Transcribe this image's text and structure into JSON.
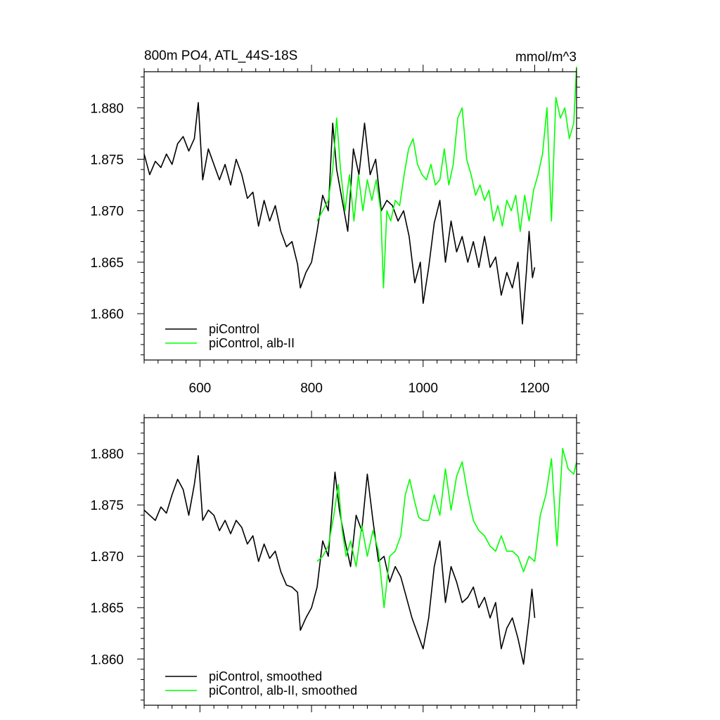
{
  "chart_data": [
    {
      "type": "line",
      "title": "800m PO4, ATL_44S-18S",
      "title_right": "mmol/m^3",
      "xlabel": "",
      "ylabel": "",
      "xlim": [
        500,
        1275
      ],
      "ylim": [
        1.8555,
        1.8835
      ],
      "xticks": [
        600,
        800,
        1000,
        1200
      ],
      "xtick_labels": [
        "600",
        "800",
        "1000",
        "1200"
      ],
      "yticks": [
        1.86,
        1.865,
        1.87,
        1.875,
        1.88
      ],
      "ytick_labels": [
        "1.860",
        "1.865",
        "1.870",
        "1.875",
        "1.880"
      ],
      "legend_position": "bottom-left",
      "grid": false,
      "series": [
        {
          "name": "piControl",
          "color": "#000000",
          "x": [
            500,
            510,
            520,
            530,
            540,
            550,
            560,
            570,
            580,
            590,
            597,
            605,
            615,
            625,
            635,
            645,
            655,
            665,
            675,
            685,
            695,
            705,
            715,
            725,
            735,
            745,
            755,
            765,
            775,
            780,
            790,
            800,
            810,
            820,
            830,
            838,
            845,
            855,
            865,
            875,
            885,
            895,
            905,
            915,
            925,
            935,
            945,
            955,
            965,
            975,
            985,
            995,
            1000,
            1010,
            1020,
            1030,
            1040,
            1050,
            1060,
            1070,
            1080,
            1090,
            1100,
            1110,
            1120,
            1130,
            1140,
            1150,
            1160,
            1170,
            1178,
            1185,
            1190,
            1196,
            1200
          ],
          "values": [
            1.8755,
            1.8735,
            1.8748,
            1.8742,
            1.8755,
            1.8745,
            1.8765,
            1.8772,
            1.8758,
            1.877,
            1.8805,
            1.873,
            1.876,
            1.8745,
            1.873,
            1.8745,
            1.8725,
            1.875,
            1.8735,
            1.8712,
            1.8718,
            1.8685,
            1.871,
            1.869,
            1.8705,
            1.868,
            1.8665,
            1.867,
            1.8648,
            1.8625,
            1.864,
            1.865,
            1.868,
            1.8715,
            1.87,
            1.8785,
            1.874,
            1.871,
            1.868,
            1.876,
            1.8735,
            1.8785,
            1.8735,
            1.875,
            1.87,
            1.871,
            1.8705,
            1.869,
            1.87,
            1.8675,
            1.863,
            1.865,
            1.861,
            1.8645,
            1.8688,
            1.871,
            1.865,
            1.869,
            1.866,
            1.8675,
            1.865,
            1.867,
            1.8645,
            1.8675,
            1.8645,
            1.8655,
            1.8618,
            1.864,
            1.8625,
            1.865,
            1.859,
            1.864,
            1.868,
            1.8635,
            1.8645
          ]
        },
        {
          "name": "piControl, alb-II",
          "color": "#00ff00",
          "x": [
            810,
            820,
            830,
            838,
            845,
            852,
            860,
            868,
            876,
            884,
            892,
            900,
            908,
            916,
            924,
            929,
            935,
            942,
            950,
            958,
            966,
            974,
            982,
            990,
            998,
            1006,
            1014,
            1022,
            1030,
            1038,
            1046,
            1054,
            1062,
            1070,
            1078,
            1086,
            1094,
            1102,
            1110,
            1118,
            1126,
            1134,
            1142,
            1150,
            1158,
            1166,
            1174,
            1182,
            1190,
            1198,
            1206,
            1214,
            1222,
            1230,
            1238,
            1246,
            1254,
            1262,
            1270,
            1275
          ],
          "values": [
            1.869,
            1.87,
            1.871,
            1.874,
            1.879,
            1.874,
            1.87,
            1.8735,
            1.869,
            1.8735,
            1.87,
            1.873,
            1.871,
            1.873,
            1.87,
            1.8625,
            1.87,
            1.869,
            1.871,
            1.8705,
            1.8735,
            1.876,
            1.877,
            1.8745,
            1.8735,
            1.873,
            1.8745,
            1.8725,
            1.873,
            1.876,
            1.8725,
            1.8745,
            1.879,
            1.88,
            1.875,
            1.8735,
            1.8715,
            1.8725,
            1.871,
            1.872,
            1.869,
            1.8705,
            1.8685,
            1.871,
            1.87,
            1.8715,
            1.868,
            1.8715,
            1.869,
            1.872,
            1.8735,
            1.8755,
            1.88,
            1.869,
            1.881,
            1.879,
            1.88,
            1.877,
            1.8785,
            1.884
          ]
        }
      ]
    },
    {
      "type": "line",
      "title": "",
      "xlabel": "",
      "ylabel": "",
      "xlim": [
        500,
        1275
      ],
      "ylim": [
        1.8555,
        1.8835
      ],
      "xticks": [
        600,
        800,
        1000,
        1200
      ],
      "xtick_labels": [],
      "yticks": [
        1.86,
        1.865,
        1.87,
        1.875,
        1.88
      ],
      "ytick_labels": [
        "1.860",
        "1.865",
        "1.870",
        "1.875",
        "1.880"
      ],
      "legend_position": "bottom-left",
      "grid": false,
      "series": [
        {
          "name": "piControl, smoothed",
          "color": "#000000",
          "x": [
            500,
            510,
            520,
            530,
            540,
            550,
            560,
            570,
            580,
            590,
            597,
            605,
            615,
            625,
            635,
            645,
            655,
            665,
            675,
            685,
            695,
            705,
            715,
            725,
            735,
            745,
            755,
            765,
            775,
            780,
            790,
            800,
            810,
            820,
            830,
            842,
            850,
            860,
            870,
            880,
            890,
            900,
            910,
            920,
            930,
            940,
            950,
            960,
            970,
            980,
            990,
            1000,
            1010,
            1020,
            1030,
            1040,
            1050,
            1060,
            1070,
            1080,
            1090,
            1100,
            1110,
            1120,
            1130,
            1140,
            1150,
            1160,
            1170,
            1180,
            1190,
            1195,
            1200
          ],
          "values": [
            1.8745,
            1.874,
            1.8735,
            1.8748,
            1.8742,
            1.876,
            1.8775,
            1.8765,
            1.874,
            1.877,
            1.8798,
            1.8735,
            1.8745,
            1.874,
            1.8725,
            1.8735,
            1.8722,
            1.8735,
            1.8728,
            1.8712,
            1.872,
            1.8695,
            1.8712,
            1.8698,
            1.8705,
            1.8685,
            1.8672,
            1.867,
            1.8665,
            1.8628,
            1.864,
            1.865,
            1.867,
            1.8715,
            1.87,
            1.8782,
            1.8745,
            1.8715,
            1.869,
            1.874,
            1.8725,
            1.878,
            1.8735,
            1.8695,
            1.87,
            1.8675,
            1.869,
            1.868,
            1.866,
            1.864,
            1.8625,
            1.861,
            1.864,
            1.869,
            1.8715,
            1.8655,
            1.869,
            1.8675,
            1.8655,
            1.866,
            1.867,
            1.865,
            1.866,
            1.864,
            1.8655,
            1.861,
            1.863,
            1.864,
            1.862,
            1.8595,
            1.864,
            1.8668,
            1.864
          ]
        },
        {
          "name": "piControl, alb-II, smoothed",
          "color": "#00ff00",
          "x": [
            810,
            820,
            830,
            840,
            848,
            855,
            862,
            870,
            880,
            890,
            900,
            910,
            920,
            930,
            940,
            950,
            960,
            968,
            976,
            984,
            992,
            1000,
            1010,
            1020,
            1030,
            1040,
            1050,
            1060,
            1070,
            1080,
            1090,
            1100,
            1110,
            1120,
            1130,
            1140,
            1150,
            1160,
            1170,
            1180,
            1190,
            1200,
            1210,
            1220,
            1230,
            1240,
            1250,
            1260,
            1270,
            1275
          ],
          "values": [
            1.8695,
            1.87,
            1.871,
            1.874,
            1.877,
            1.8725,
            1.87,
            1.8715,
            1.869,
            1.873,
            1.87,
            1.8725,
            1.8705,
            1.865,
            1.87,
            1.8705,
            1.872,
            1.876,
            1.8775,
            1.8755,
            1.8738,
            1.8735,
            1.8735,
            1.876,
            1.874,
            1.8785,
            1.8745,
            1.8778,
            1.8792,
            1.876,
            1.8735,
            1.8725,
            1.872,
            1.871,
            1.8705,
            1.872,
            1.8705,
            1.8705,
            1.87,
            1.8685,
            1.87,
            1.8695,
            1.874,
            1.876,
            1.8795,
            1.871,
            1.8805,
            1.8785,
            1.878,
            1.8792
          ]
        }
      ]
    }
  ]
}
